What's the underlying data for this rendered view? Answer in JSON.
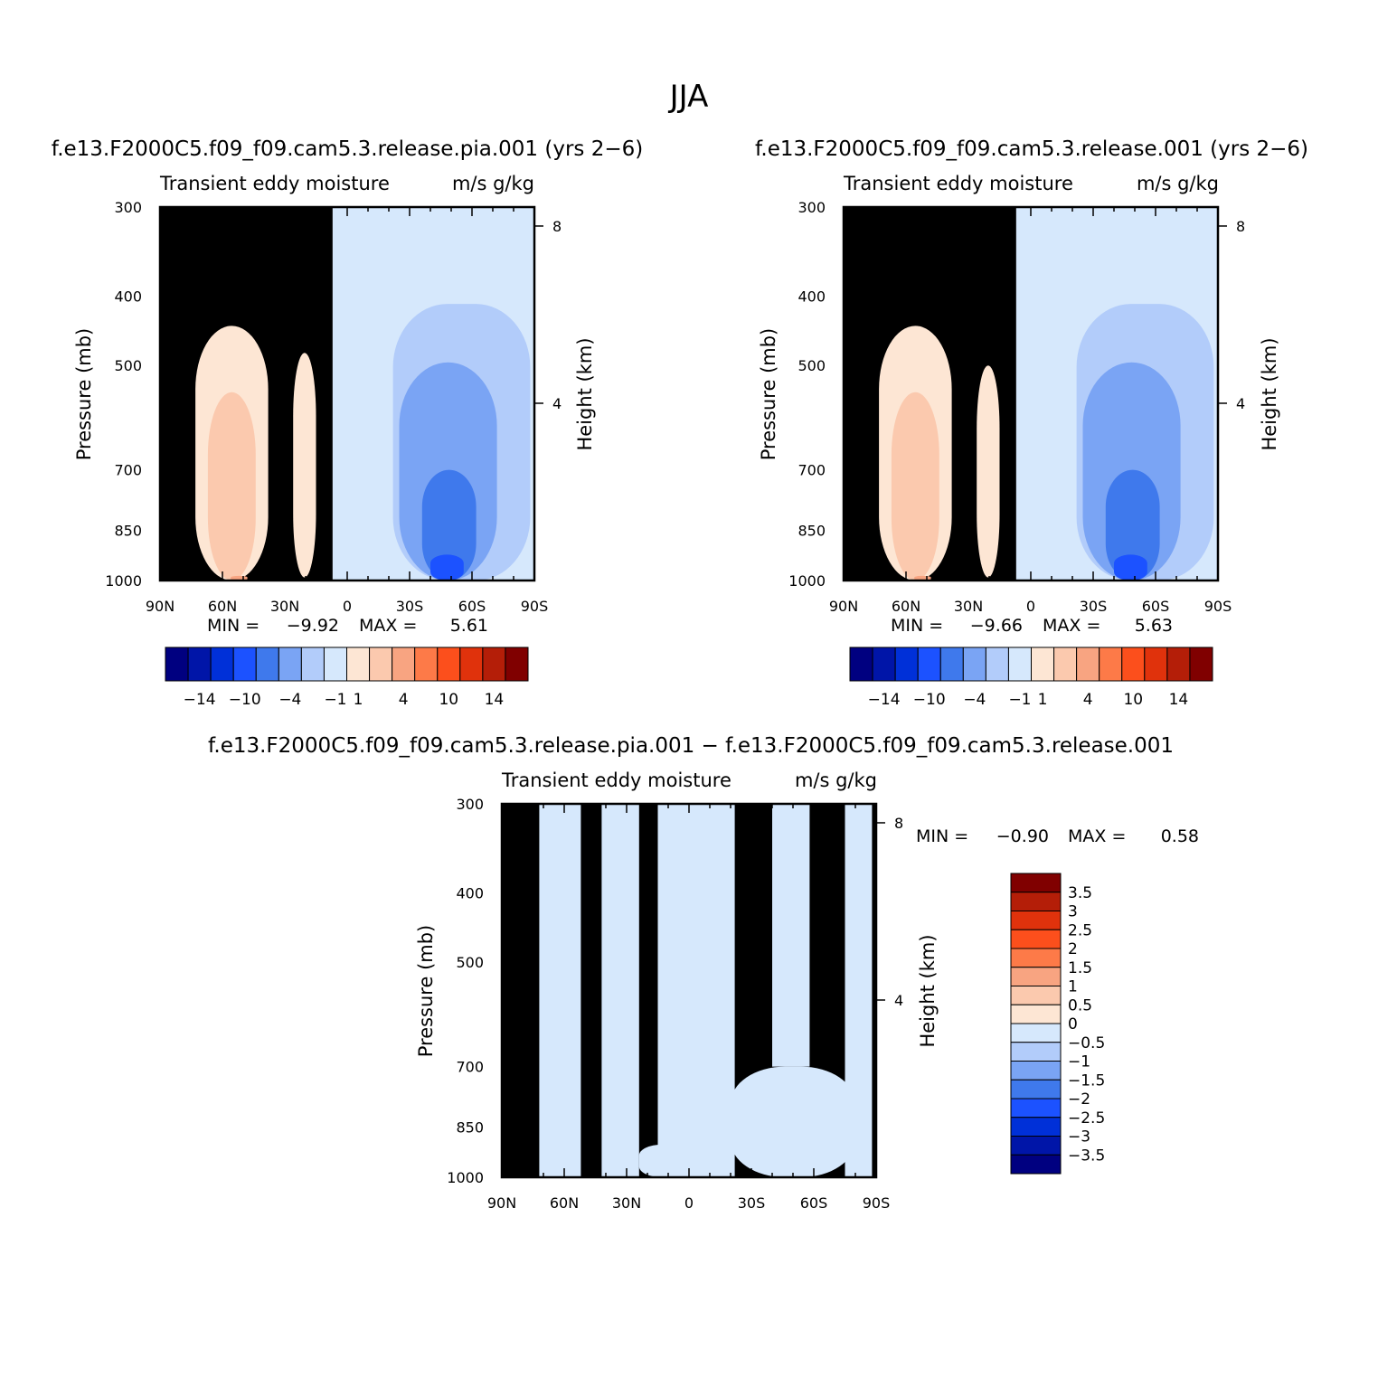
{
  "figure_title": "JJA",
  "colors": {
    "neg": [
      "#000080",
      "#0015a8",
      "#0030d8",
      "#1c52ff",
      "#3f79ec",
      "#7aa4f4",
      "#b2ccfa",
      "#d6e8fc"
    ],
    "pos": [
      "#fde6d4",
      "#fbc9ae",
      "#f8a481",
      "#fd7a48",
      "#fc4f1c",
      "#e0320c",
      "#b41e08",
      "#800000"
    ]
  },
  "chart_data": [
    {
      "id": "pia",
      "type": "contour",
      "case_title": "f.e13.F2000C5.f09_f09.cam5.3.release.pia.001  (yrs  2−6)",
      "left_title": "Transient  eddy  moisture",
      "right_title": "m/s  g/kg",
      "ylabel": "Pressure  (mb)",
      "y2label": "Height  (km)",
      "x_ticks": [
        "90N",
        "60N",
        "30N",
        "0",
        "30S",
        "60S",
        "90S"
      ],
      "xlim": [
        90,
        -90
      ],
      "y_ticks": [
        "300",
        "400",
        "500",
        "700",
        "850",
        "1000"
      ],
      "ylim": [
        1000,
        300
      ],
      "height_ticks": [
        "8",
        "4"
      ],
      "min_label": "MIN  =",
      "min_value": "−9.92",
      "max_label": "MAX  =",
      "max_value": "5.61",
      "colorbar_labels": [
        "−14",
        "−10",
        "−4",
        "−1",
        "1",
        "4",
        "10",
        "14"
      ],
      "regions": [
        {
          "level": 0,
          "lat": [
            90,
            7
          ],
          "p": [
            300,
            1000
          ]
        },
        {
          "level": 1,
          "lat": [
            73,
            38
          ],
          "p": [
            440,
            1000
          ]
        },
        {
          "level": 2,
          "lat": [
            67,
            44
          ],
          "p": [
            545,
            1000
          ]
        },
        {
          "level": 3,
          "lat": [
            56,
            48
          ],
          "p": [
            985,
            1000
          ]
        },
        {
          "level": 1,
          "lat": [
            26,
            15
          ],
          "p": [
            480,
            990
          ]
        },
        {
          "level": -1,
          "lat": [
            7,
            -90
          ],
          "p": [
            300,
            1000
          ]
        },
        {
          "level": -2,
          "lat": [
            -22,
            -88
          ],
          "p": [
            410,
            1000
          ]
        },
        {
          "level": -3,
          "lat": [
            -25,
            -72
          ],
          "p": [
            495,
            1000
          ]
        },
        {
          "level": -4,
          "lat": [
            -36,
            -62
          ],
          "p": [
            700,
            1000
          ]
        },
        {
          "level": -5,
          "lat": [
            -40,
            -56
          ],
          "p": [
            920,
            1000
          ]
        }
      ]
    },
    {
      "id": "ctrl",
      "type": "contour",
      "case_title": "f.e13.F2000C5.f09_f09.cam5.3.release.001  (yrs  2−6)",
      "left_title": "Transient  eddy  moisture",
      "right_title": "m/s  g/kg",
      "ylabel": "Pressure  (mb)",
      "y2label": "Height  (km)",
      "x_ticks": [
        "90N",
        "60N",
        "30N",
        "0",
        "30S",
        "60S",
        "90S"
      ],
      "xlim": [
        90,
        -90
      ],
      "y_ticks": [
        "300",
        "400",
        "500",
        "700",
        "850",
        "1000"
      ],
      "ylim": [
        1000,
        300
      ],
      "height_ticks": [
        "8",
        "4"
      ],
      "min_label": "MIN  =",
      "min_value": "−9.66",
      "max_label": "MAX  =",
      "max_value": "5.63",
      "colorbar_labels": [
        "−14",
        "−10",
        "−4",
        "−1",
        "1",
        "4",
        "10",
        "14"
      ],
      "regions": [
        {
          "level": 0,
          "lat": [
            90,
            7
          ],
          "p": [
            300,
            1000
          ]
        },
        {
          "level": 1,
          "lat": [
            73,
            38
          ],
          "p": [
            440,
            1000
          ]
        },
        {
          "level": 2,
          "lat": [
            67,
            44
          ],
          "p": [
            545,
            1000
          ]
        },
        {
          "level": 3,
          "lat": [
            56,
            48
          ],
          "p": [
            985,
            1000
          ]
        },
        {
          "level": 1,
          "lat": [
            26,
            15
          ],
          "p": [
            500,
            990
          ]
        },
        {
          "level": -1,
          "lat": [
            7,
            -90
          ],
          "p": [
            300,
            1000
          ]
        },
        {
          "level": -2,
          "lat": [
            -22,
            -88
          ],
          "p": [
            410,
            1000
          ]
        },
        {
          "level": -3,
          "lat": [
            -25,
            -72
          ],
          "p": [
            495,
            1000
          ]
        },
        {
          "level": -4,
          "lat": [
            -36,
            -62
          ],
          "p": [
            700,
            1000
          ]
        },
        {
          "level": -5,
          "lat": [
            -40,
            -56
          ],
          "p": [
            920,
            1000
          ]
        }
      ]
    },
    {
      "id": "diff",
      "type": "contour",
      "case_title": "f.e13.F2000C5.f09_f09.cam5.3.release.pia.001  −  f.e13.F2000C5.f09_f09.cam5.3.release.001",
      "left_title": "Transient  eddy  moisture",
      "right_title": "m/s  g/kg",
      "ylabel": "Pressure  (mb)",
      "y2label": "Height  (km)",
      "x_ticks": [
        "90N",
        "60N",
        "30N",
        "0",
        "30S",
        "60S",
        "90S"
      ],
      "xlim": [
        90,
        -90
      ],
      "y_ticks": [
        "300",
        "400",
        "500",
        "700",
        "850",
        "1000"
      ],
      "ylim": [
        1000,
        300
      ],
      "height_ticks": [
        "8",
        "4"
      ],
      "min_label": "MIN  =",
      "min_value": "−0.90",
      "max_label": "MAX  =",
      "max_value": "0.58",
      "colorbar_labels": [
        "3.5",
        "3",
        "2.5",
        "2",
        "1.5",
        "1",
        "0.5",
        "0",
        "−0.5",
        "−1",
        "−1.5",
        "−2",
        "−2.5",
        "−3",
        "−3.5"
      ],
      "regions": [
        {
          "level": 0,
          "lat": [
            90,
            -90
          ],
          "p": [
            300,
            1000
          ]
        },
        {
          "level": -1,
          "lat": [
            72,
            52
          ],
          "p": [
            300,
            1000
          ]
        },
        {
          "level": -1,
          "lat": [
            42,
            24
          ],
          "p": [
            300,
            1000
          ]
        },
        {
          "level": -1,
          "lat": [
            15,
            -22
          ],
          "p": [
            300,
            1000
          ]
        },
        {
          "level": -1,
          "lat": [
            -40,
            -58
          ],
          "p": [
            300,
            700
          ]
        },
        {
          "level": -1,
          "lat": [
            -75,
            -88
          ],
          "p": [
            300,
            1000
          ]
        },
        {
          "level": -1,
          "lat": [
            24,
            2
          ],
          "p": [
            900,
            1000
          ]
        },
        {
          "level": -1,
          "lat": [
            -20,
            -80
          ],
          "p": [
            700,
            1000
          ]
        }
      ]
    }
  ]
}
